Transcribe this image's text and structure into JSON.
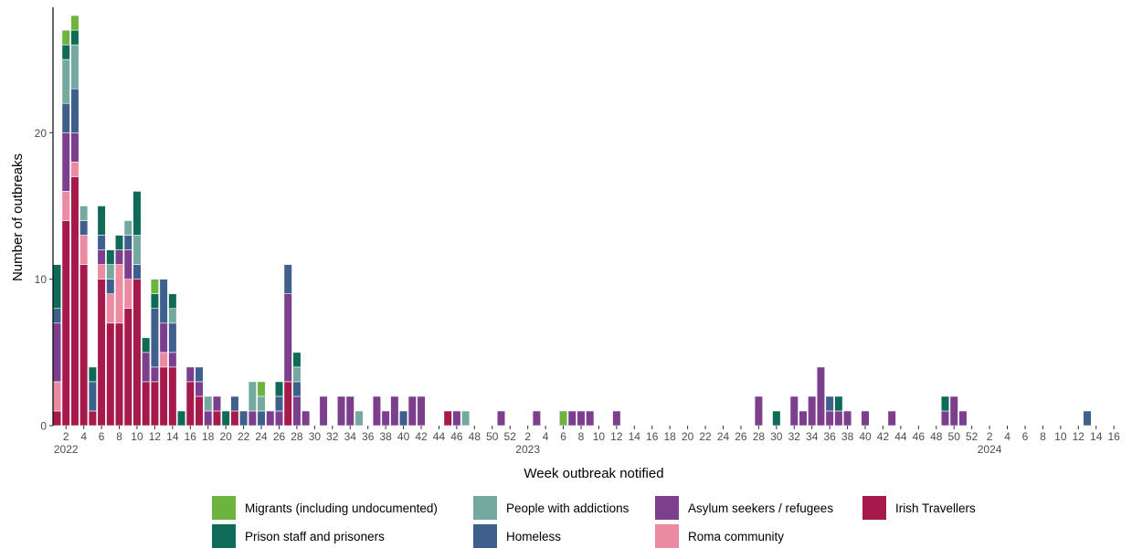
{
  "chart_data": {
    "type": "bar",
    "stacked": true,
    "xlabel": "Week outbreak notified",
    "ylabel": "Number of outbreaks",
    "ylim": [
      0,
      28
    ],
    "yticks": [
      0,
      10,
      20
    ],
    "grid": false,
    "legend_position": "bottom",
    "categories": [
      "2022-W01",
      "2022-W02",
      "2022-W03",
      "2022-W04",
      "2022-W05",
      "2022-W06",
      "2022-W07",
      "2022-W08",
      "2022-W09",
      "2022-W10",
      "2022-W11",
      "2022-W12",
      "2022-W13",
      "2022-W14",
      "2022-W15",
      "2022-W16",
      "2022-W17",
      "2022-W18",
      "2022-W19",
      "2022-W20",
      "2022-W21",
      "2022-W22",
      "2022-W23",
      "2022-W24",
      "2022-W25",
      "2022-W26",
      "2022-W27",
      "2022-W28",
      "2022-W29",
      "2022-W30",
      "2022-W31",
      "2022-W32",
      "2022-W33",
      "2022-W34",
      "2022-W35",
      "2022-W36",
      "2022-W37",
      "2022-W38",
      "2022-W39",
      "2022-W40",
      "2022-W41",
      "2022-W42",
      "2022-W43",
      "2022-W44",
      "2022-W45",
      "2022-W46",
      "2022-W47",
      "2022-W48",
      "2022-W49",
      "2022-W50",
      "2022-W51",
      "2022-W52",
      "2023-W01",
      "2023-W02",
      "2023-W03",
      "2023-W04",
      "2023-W05",
      "2023-W06",
      "2023-W07",
      "2023-W08",
      "2023-W09",
      "2023-W10",
      "2023-W11",
      "2023-W12",
      "2023-W13",
      "2023-W14",
      "2023-W15",
      "2023-W16",
      "2023-W17",
      "2023-W18",
      "2023-W19",
      "2023-W20",
      "2023-W21",
      "2023-W22",
      "2023-W23",
      "2023-W24",
      "2023-W25",
      "2023-W26",
      "2023-W27",
      "2023-W28",
      "2023-W29",
      "2023-W30",
      "2023-W31",
      "2023-W32",
      "2023-W33",
      "2023-W34",
      "2023-W35",
      "2023-W36",
      "2023-W37",
      "2023-W38",
      "2023-W39",
      "2023-W40",
      "2023-W41",
      "2023-W42",
      "2023-W43",
      "2023-W44",
      "2023-W45",
      "2023-W46",
      "2023-W47",
      "2023-W48",
      "2023-W49",
      "2023-W50",
      "2023-W51",
      "2023-W52",
      "2024-W01",
      "2024-W02",
      "2024-W03",
      "2024-W04",
      "2024-W05",
      "2024-W06",
      "2024-W07",
      "2024-W08",
      "2024-W09",
      "2024-W10",
      "2024-W11",
      "2024-W12",
      "2024-W13",
      "2024-W14",
      "2024-W15",
      "2024-W16"
    ],
    "x_tick_labels": [
      {
        "week": "2022-W02",
        "label": "2"
      },
      {
        "week": "2022-W04",
        "label": "4"
      },
      {
        "week": "2022-W06",
        "label": "6"
      },
      {
        "week": "2022-W08",
        "label": "8"
      },
      {
        "week": "2022-W10",
        "label": "10"
      },
      {
        "week": "2022-W12",
        "label": "12"
      },
      {
        "week": "2022-W14",
        "label": "14"
      },
      {
        "week": "2022-W16",
        "label": "16"
      },
      {
        "week": "2022-W18",
        "label": "18"
      },
      {
        "week": "2022-W20",
        "label": "20"
      },
      {
        "week": "2022-W22",
        "label": "22"
      },
      {
        "week": "2022-W24",
        "label": "24"
      },
      {
        "week": "2022-W26",
        "label": "26"
      },
      {
        "week": "2022-W28",
        "label": "28"
      },
      {
        "week": "2022-W30",
        "label": "30"
      },
      {
        "week": "2022-W32",
        "label": "32"
      },
      {
        "week": "2022-W34",
        "label": "34"
      },
      {
        "week": "2022-W36",
        "label": "36"
      },
      {
        "week": "2022-W38",
        "label": "38"
      },
      {
        "week": "2022-W40",
        "label": "40"
      },
      {
        "week": "2022-W42",
        "label": "42"
      },
      {
        "week": "2022-W44",
        "label": "44"
      },
      {
        "week": "2022-W46",
        "label": "46"
      },
      {
        "week": "2022-W48",
        "label": "48"
      },
      {
        "week": "2022-W50",
        "label": "50"
      },
      {
        "week": "2022-W52",
        "label": "52"
      },
      {
        "week": "2023-W02",
        "label": "2"
      },
      {
        "week": "2023-W04",
        "label": "4"
      },
      {
        "week": "2023-W06",
        "label": "6"
      },
      {
        "week": "2023-W08",
        "label": "8"
      },
      {
        "week": "2023-W10",
        "label": "10"
      },
      {
        "week": "2023-W12",
        "label": "12"
      },
      {
        "week": "2023-W14",
        "label": "14"
      },
      {
        "week": "2023-W16",
        "label": "16"
      },
      {
        "week": "2023-W18",
        "label": "18"
      },
      {
        "week": "2023-W20",
        "label": "20"
      },
      {
        "week": "2023-W22",
        "label": "22"
      },
      {
        "week": "2023-W24",
        "label": "24"
      },
      {
        "week": "2023-W26",
        "label": "26"
      },
      {
        "week": "2023-W28",
        "label": "28"
      },
      {
        "week": "2023-W30",
        "label": "30"
      },
      {
        "week": "2023-W32",
        "label": "32"
      },
      {
        "week": "2023-W34",
        "label": "34"
      },
      {
        "week": "2023-W36",
        "label": "36"
      },
      {
        "week": "2023-W38",
        "label": "38"
      },
      {
        "week": "2023-W40",
        "label": "40"
      },
      {
        "week": "2023-W42",
        "label": "42"
      },
      {
        "week": "2023-W44",
        "label": "44"
      },
      {
        "week": "2023-W46",
        "label": "46"
      },
      {
        "week": "2023-W48",
        "label": "48"
      },
      {
        "week": "2023-W50",
        "label": "50"
      },
      {
        "week": "2023-W52",
        "label": "52"
      },
      {
        "week": "2024-W02",
        "label": "2"
      },
      {
        "week": "2024-W04",
        "label": "4"
      },
      {
        "week": "2024-W06",
        "label": "6"
      },
      {
        "week": "2024-W08",
        "label": "8"
      },
      {
        "week": "2024-W10",
        "label": "10"
      },
      {
        "week": "2024-W12",
        "label": "12"
      },
      {
        "week": "2024-W14",
        "label": "14"
      },
      {
        "week": "2024-W16",
        "label": "16"
      }
    ],
    "year_labels": [
      {
        "week": "2022-W02",
        "label": "2022"
      },
      {
        "week": "2023-W02",
        "label": "2023"
      },
      {
        "week": "2024-W02",
        "label": "2024"
      }
    ],
    "series": [
      {
        "name": "Irish Travellers",
        "color": "#A6194B",
        "values": {
          "2022-W01": 1,
          "2022-W02": 14,
          "2022-W03": 17,
          "2022-W04": 11,
          "2022-W05": 1,
          "2022-W06": 10,
          "2022-W07": 7,
          "2022-W08": 7,
          "2022-W09": 8,
          "2022-W10": 10,
          "2022-W11": 3,
          "2022-W12": 3,
          "2022-W13": 4,
          "2022-W14": 4,
          "2022-W16": 3,
          "2022-W17": 2,
          "2022-W19": 1,
          "2022-W21": 1,
          "2022-W27": 3,
          "2022-W45": 1
        }
      },
      {
        "name": "Roma community",
        "color": "#EB8BA2",
        "values": {
          "2022-W01": 2,
          "2022-W02": 2,
          "2022-W03": 1,
          "2022-W04": 2,
          "2022-W06": 1,
          "2022-W07": 2,
          "2022-W08": 4,
          "2022-W09": 2,
          "2022-W13": 1
        }
      },
      {
        "name": "Asylum seekers / refugees",
        "color": "#7B3F8E",
        "values": {
          "2022-W01": 4,
          "2022-W02": 4,
          "2022-W03": 2,
          "2022-W06": 1,
          "2022-W08": 1,
          "2022-W09": 2,
          "2022-W11": 2,
          "2022-W12": 1,
          "2022-W13": 2,
          "2022-W14": 1,
          "2022-W16": 1,
          "2022-W17": 1,
          "2022-W18": 1,
          "2022-W19": 1,
          "2022-W23": 1,
          "2022-W25": 1,
          "2022-W26": 1,
          "2022-W27": 6,
          "2022-W28": 2,
          "2022-W29": 1,
          "2022-W31": 2,
          "2022-W33": 2,
          "2022-W34": 2,
          "2022-W37": 2,
          "2022-W38": 1,
          "2022-W39": 2,
          "2022-W41": 2,
          "2022-W42": 2,
          "2022-W46": 1,
          "2022-W51": 1,
          "2023-W03": 1,
          "2023-W07": 1,
          "2023-W08": 1,
          "2023-W09": 1,
          "2023-W12": 1,
          "2023-W28": 2,
          "2023-W32": 2,
          "2023-W33": 1,
          "2023-W34": 2,
          "2023-W35": 4,
          "2023-W36": 1,
          "2023-W37": 1,
          "2023-W38": 1,
          "2023-W40": 1,
          "2023-W43": 1,
          "2023-W49": 1,
          "2023-W50": 2,
          "2023-W51": 1
        }
      },
      {
        "name": "Homeless",
        "color": "#3F5F8C",
        "values": {
          "2022-W01": 1,
          "2022-W02": 2,
          "2022-W03": 3,
          "2022-W04": 1,
          "2022-W05": 2,
          "2022-W06": 1,
          "2022-W07": 1,
          "2022-W09": 1,
          "2022-W10": 1,
          "2022-W12": 4,
          "2022-W13": 3,
          "2022-W14": 2,
          "2022-W17": 1,
          "2022-W21": 1,
          "2022-W22": 1,
          "2022-W24": 1,
          "2022-W26": 1,
          "2022-W27": 2,
          "2022-W28": 1,
          "2022-W40": 1,
          "2023-W36": 1,
          "2024-W13": 1
        }
      },
      {
        "name": "People with addictions",
        "color": "#74A9A0",
        "values": {
          "2022-W02": 3,
          "2022-W03": 3,
          "2022-W04": 1,
          "2022-W07": 1,
          "2022-W09": 1,
          "2022-W10": 2,
          "2022-W14": 1,
          "2022-W18": 1,
          "2022-W23": 2,
          "2022-W24": 1,
          "2022-W28": 1,
          "2022-W35": 1,
          "2022-W47": 1
        }
      },
      {
        "name": "Prison staff and prisoners",
        "color": "#0F6A57",
        "values": {
          "2022-W01": 3,
          "2022-W02": 1,
          "2022-W03": 1,
          "2022-W05": 1,
          "2022-W06": 2,
          "2022-W07": 1,
          "2022-W08": 1,
          "2022-W10": 3,
          "2022-W11": 1,
          "2022-W12": 1,
          "2022-W14": 1,
          "2022-W15": 1,
          "2022-W20": 1,
          "2022-W26": 1,
          "2022-W28": 1,
          "2023-W30": 1,
          "2023-W37": 1,
          "2023-W49": 1
        }
      },
      {
        "name": "Migrants (including undocumented)",
        "color": "#6CB33F",
        "values": {
          "2022-W02": 1,
          "2022-W03": 1,
          "2022-W12": 1,
          "2022-W24": 1,
          "2023-W06": 1
        }
      }
    ],
    "legend": {
      "rows": [
        [
          "Migrants (including undocumented)",
          "People with addictions",
          "Asylum seekers / refugees",
          "Irish Travellers"
        ],
        [
          "Prison staff and prisoners",
          "Homeless",
          "Roma community"
        ]
      ]
    }
  }
}
